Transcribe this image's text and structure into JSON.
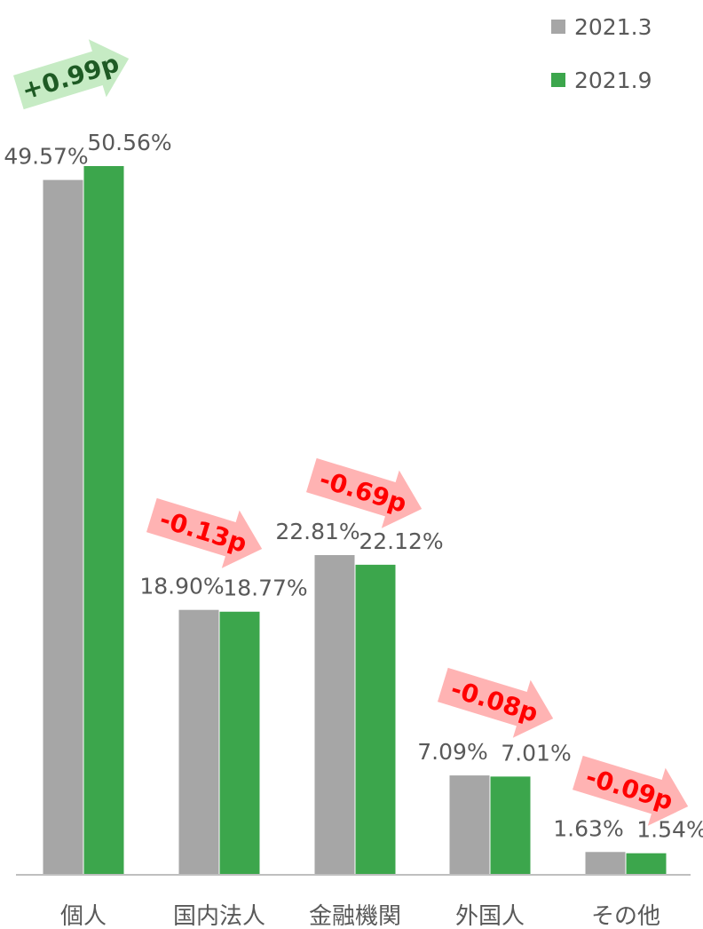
{
  "chart_data": {
    "type": "bar",
    "title": "",
    "xlabel": "",
    "ylabel": "",
    "ylim": [
      0,
      50.56
    ],
    "grid": false,
    "legend": "top-right",
    "categories": [
      "個人",
      "国内法人",
      "金融機関",
      "外国人",
      "その他"
    ],
    "series": [
      {
        "name": "2021.3",
        "color": "#a6a6a6",
        "values": [
          49.57,
          18.9,
          22.81,
          7.09,
          1.63
        ],
        "labels": [
          "49.57%",
          "18.90%",
          "22.81%",
          "7.09%",
          "1.63%"
        ]
      },
      {
        "name": "2021.9",
        "color": "#3ca64c",
        "values": [
          50.56,
          18.77,
          22.12,
          7.01,
          1.54
        ],
        "labels": [
          "50.56%",
          "18.77%",
          "22.12%",
          "7.01%",
          "1.54%"
        ]
      }
    ],
    "annotations": [
      {
        "category": "個人",
        "text": "+0.99p",
        "direction": "up",
        "fill": "#c6ebc4",
        "text_color": "#1e5a24"
      },
      {
        "category": "国内法人",
        "text": "-0.13p",
        "direction": "down",
        "fill": "#ffb3b3",
        "text_color": "#ff0000"
      },
      {
        "category": "金融機関",
        "text": "-0.69p",
        "direction": "down",
        "fill": "#ffb3b3",
        "text_color": "#ff0000"
      },
      {
        "category": "外国人",
        "text": "-0.08p",
        "direction": "down",
        "fill": "#ffb3b3",
        "text_color": "#ff0000"
      },
      {
        "category": "その他",
        "text": "-0.09p",
        "direction": "down",
        "fill": "#ffb3b3",
        "text_color": "#ff0000"
      }
    ]
  }
}
